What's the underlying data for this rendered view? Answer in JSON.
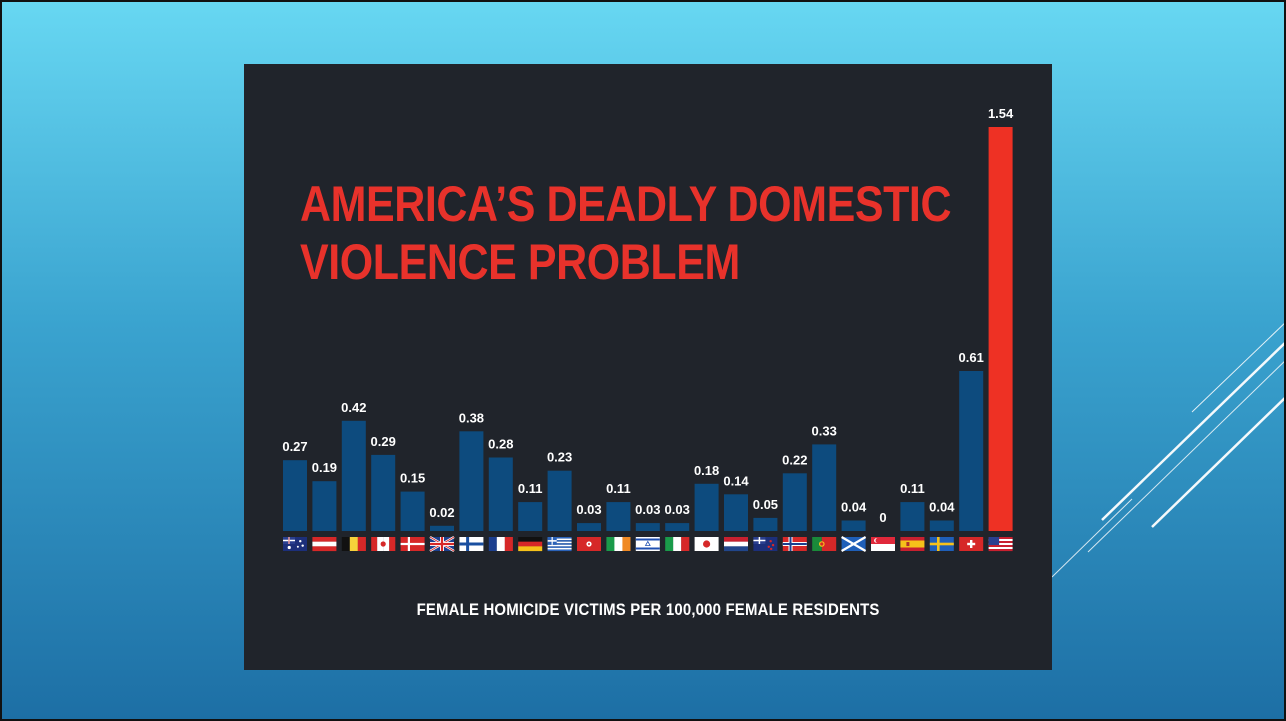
{
  "theme": {
    "bar_color": "#0d4b7e",
    "highlight_color": "#ee3124",
    "title_color": "#e8322b",
    "panel_background": "#20242b"
  },
  "chart_data": {
    "type": "bar",
    "title": "AMERICA'S DEADLY DOMESTIC VIOLENCE PROBLEM",
    "title_lines": [
      "AMERICA’S DEADLY DOMESTIC",
      "VIOLENCE PROBLEM"
    ],
    "xlabel": "FEMALE HOMICIDE VICTIMS PER 100,000 FEMALE RESIDENTS",
    "ylabel": "",
    "ylim": [
      0,
      1.6
    ],
    "grid": false,
    "legend": "none",
    "highlight_index": 24,
    "values": [
      0.27,
      0.19,
      0.42,
      0.29,
      0.15,
      0.02,
      0.38,
      0.28,
      0.11,
      0.23,
      0.03,
      0.11,
      0.03,
      0.03,
      0.18,
      0.14,
      0.05,
      0.22,
      0.33,
      0.04,
      0,
      0.11,
      0.04,
      0.61,
      1.54
    ],
    "value_labels": [
      "0.27",
      "0.19",
      "0.42",
      "0.29",
      "0.15",
      "0.02",
      "0.38",
      "0.28",
      "0.11",
      "0.23",
      "0.03",
      "0.11",
      "0.03",
      "0.03",
      "0.18",
      "0.14",
      "0.05",
      "0.22",
      "0.33",
      "0.04",
      "0",
      "0.11",
      "0.04",
      "0.61",
      "1.54"
    ],
    "category_icons": [
      "australia-flag-icon",
      "austria-flag-icon",
      "belgium-flag-icon",
      "canada-flag-icon",
      "denmark-flag-icon",
      "united-kingdom-flag-icon",
      "finland-flag-icon",
      "france-flag-icon",
      "germany-flag-icon",
      "greece-flag-icon",
      "hong-kong-flag-icon",
      "ireland-flag-icon",
      "israel-flag-icon",
      "italy-flag-icon",
      "japan-flag-icon",
      "netherlands-flag-icon",
      "new-zealand-flag-icon",
      "norway-flag-icon",
      "portugal-flag-icon",
      "scotland-flag-icon",
      "singapore-flag-icon",
      "spain-flag-icon",
      "sweden-flag-icon",
      "switzerland-flag-icon",
      "united-states-flag-icon"
    ]
  }
}
